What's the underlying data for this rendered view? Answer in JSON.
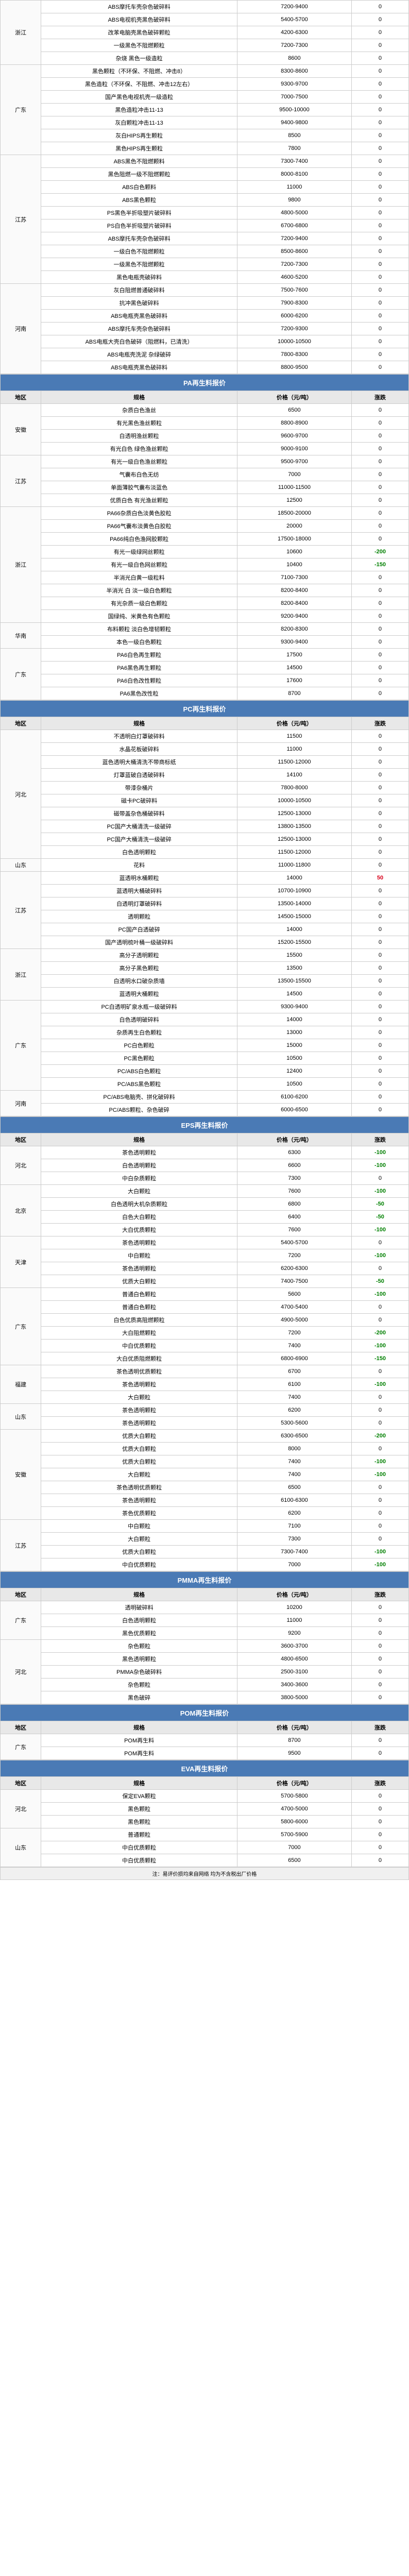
{
  "headers": {
    "region": "地区",
    "spec": "规格",
    "price": "价格（元/吨）",
    "change": "涨跌"
  },
  "colors": {
    "section_bg": "#4a7ab5",
    "section_fg": "#ffffff",
    "header_bg": "#e8e8e8",
    "border": "#cccccc",
    "up": "#d9001b",
    "down": "#008000",
    "neutral": "#000000"
  },
  "sections": [
    {
      "title": "",
      "show_header": false,
      "groups": [
        {
          "region": "浙江",
          "rows": [
            {
              "spec": "ABS摩托车壳杂色破碎料",
              "price": "7200-9400",
              "change": "0"
            },
            {
              "spec": "ABS电视机壳黑色破碎料",
              "price": "5400-5700",
              "change": "0"
            },
            {
              "spec": "改苯电脑壳黑色破碎颗粒",
              "price": "4200-6300",
              "change": "0"
            },
            {
              "spec": "一级黑色不阻燃颗粒",
              "price": "7200-7300",
              "change": "0"
            },
            {
              "spec": "杂烧 黑色一级造粒",
              "price": "8600",
              "change": "0"
            }
          ]
        },
        {
          "region": "广东",
          "rows": [
            {
              "spec": "黑色颗粒（不环保、不阻燃、冲击8）",
              "price": "8300-8600",
              "change": "0"
            },
            {
              "spec": "黑色造粒（不环保、不阻燃、冲击12左右）",
              "price": "9300-9700",
              "change": "0"
            },
            {
              "spec": "国产黑色电视机壳一级造粒",
              "price": "7000-7500",
              "change": "0"
            },
            {
              "spec": "黑色造粒冲击11-13",
              "price": "9500-10000",
              "change": "0"
            },
            {
              "spec": "灰白颗粒冲击11-13",
              "price": "9400-9800",
              "change": "0"
            },
            {
              "spec": "灰白HIPS再生颗粒",
              "price": "8500",
              "change": "0"
            },
            {
              "spec": "黑色HIPS再生颗粒",
              "price": "7800",
              "change": "0"
            }
          ]
        },
        {
          "region": "江苏",
          "rows": [
            {
              "spec": "ABS黑色不阻燃颗料",
              "price": "7300-7400",
              "change": "0"
            },
            {
              "spec": "黑色阻燃一级不阻燃颗粒",
              "price": "8000-8100",
              "change": "0"
            },
            {
              "spec": "ABS白色颗料",
              "price": "11000",
              "change": "0"
            },
            {
              "spec": "ABS黑色颗粒",
              "price": "9800",
              "change": "0"
            },
            {
              "spec": "PS黑色半折吸塑片破碎料",
              "price": "4800-5000",
              "change": "0"
            },
            {
              "spec": "PS白色半折吸塑片破碎料",
              "price": "6700-6800",
              "change": "0"
            },
            {
              "spec": "ABS摩托车壳杂色破碎料",
              "price": "7200-9400",
              "change": "0"
            },
            {
              "spec": "一级白色不阻燃颗粒",
              "price": "8500-8600",
              "change": "0"
            },
            {
              "spec": "一级黑色不阻燃颗粒",
              "price": "7200-7300",
              "change": "0"
            },
            {
              "spec": "黑色电瓶壳破碎料",
              "price": "4600-5200",
              "change": "0"
            }
          ]
        },
        {
          "region": "河南",
          "rows": [
            {
              "spec": "灰白阻燃普通破碎料",
              "price": "7500-7600",
              "change": "0"
            },
            {
              "spec": "抗冲黑色破碎料",
              "price": "7900-8300",
              "change": "0"
            },
            {
              "spec": "ABS电瓶壳黑色破碎料",
              "price": "6000-6200",
              "change": "0"
            },
            {
              "spec": "ABS摩托车壳杂色破碎料",
              "price": "7200-9300",
              "change": "0"
            },
            {
              "spec": "ABS电瓶大壳白色破碎（阻燃料，已清洗）",
              "price": "10000-10500",
              "change": "0"
            },
            {
              "spec": "ABS电瓶壳洗泥 杂绿破碎",
              "price": "7800-8300",
              "change": "0"
            },
            {
              "spec": "ABS电瓶壳黑色破碎料",
              "price": "8800-9500",
              "change": "0"
            }
          ]
        }
      ]
    },
    {
      "title": "PA再生料报价",
      "show_header": true,
      "groups": [
        {
          "region": "安徽",
          "rows": [
            {
              "spec": "杂质白色渔丝",
              "price": "6500",
              "change": "0"
            },
            {
              "spec": "有光黑色渔丝颗粒",
              "price": "8800-8900",
              "change": "0"
            },
            {
              "spec": "白透明渔丝颗粒",
              "price": "9600-9700",
              "change": "0"
            },
            {
              "spec": "有光白色 绿色渔丝颗粒",
              "price": "9000-9100",
              "change": "0"
            }
          ]
        },
        {
          "region": "江苏",
          "rows": [
            {
              "spec": "有光一级白色渔丝颗粒",
              "price": "9500-9700",
              "change": "0"
            },
            {
              "spec": "气囊布白色无纺",
              "price": "7000",
              "change": "0"
            },
            {
              "spec": "单面薄胶气囊布淡蓝色",
              "price": "11000-11500",
              "change": "0"
            },
            {
              "spec": "优质白色 有光渔丝颗粒",
              "price": "12500",
              "change": "0"
            }
          ]
        },
        {
          "region": "浙江",
          "rows": [
            {
              "spec": "PA66杂质白色淡黄色胶粒",
              "price": "18500-20000",
              "change": "0"
            },
            {
              "spec": "PA66气囊布淡黄色白胶粒",
              "price": "20000",
              "change": "0"
            },
            {
              "spec": "PA66纯白色渔网胶颗粒",
              "price": "17500-18000",
              "change": "0"
            },
            {
              "spec": "有光一级绿网丝颗粒",
              "price": "10600",
              "change": "-200"
            },
            {
              "spec": "有光一级白色网丝颗粒",
              "price": "10400",
              "change": "-150"
            },
            {
              "spec": "半消光白黄一级粒料",
              "price": "7100-7300",
              "change": "0"
            },
            {
              "spec": "半消光 白 淡一级白色颗粒",
              "price": "8200-8400",
              "change": "0"
            },
            {
              "spec": "有光杂质一级白色颗粒",
              "price": "8200-8400",
              "change": "0"
            },
            {
              "spec": "国绿纯、米黄色有色颗粒",
              "price": "9200-9400",
              "change": "0"
            }
          ]
        },
        {
          "region": "华南",
          "rows": [
            {
              "spec": "布料颗粒 淡白色增韧颗粒",
              "price": "8200-8300",
              "change": "0"
            },
            {
              "spec": "本色一级白色颗粒",
              "price": "9300-9400",
              "change": "0"
            }
          ]
        },
        {
          "region": "广东",
          "rows": [
            {
              "spec": "PA6白色再生颗粒",
              "price": "17500",
              "change": "0"
            },
            {
              "spec": "PA6黑色再生颗粒",
              "price": "14500",
              "change": "0"
            },
            {
              "spec": "PA6白色改性颗粒",
              "price": "17600",
              "change": "0"
            },
            {
              "spec": "PA6黑色改性粒",
              "price": "8700",
              "change": "0"
            }
          ]
        }
      ]
    },
    {
      "title": "PC再生料报价",
      "show_header": true,
      "groups": [
        {
          "region": "河北",
          "rows": [
            {
              "spec": "不透明白灯罩破碎料",
              "price": "11500",
              "change": "0"
            },
            {
              "spec": "水晶花板破碎料",
              "price": "11000",
              "change": "0"
            },
            {
              "spec": "蓝色透明大桶清洗不带商标纸",
              "price": "11500-12000",
              "change": "0"
            },
            {
              "spec": "灯罩蓝破白透破碎料",
              "price": "14100",
              "change": "0"
            },
            {
              "spec": "带漆杂桶片",
              "price": "7800-8000",
              "change": "0"
            },
            {
              "spec": "磁卡PC破碎料",
              "price": "10000-10500",
              "change": "0"
            },
            {
              "spec": "磁带盖杂色桶破碎料",
              "price": "12500-13000",
              "change": "0"
            },
            {
              "spec": "PC国产大桶清洗一级破碎",
              "price": "13800-13500",
              "change": "0"
            },
            {
              "spec": "PC国产大桶清洗一级破碎",
              "price": "12500-13000",
              "change": "0"
            },
            {
              "spec": "白色透明颗粒",
              "price": "11500-12000",
              "change": "0"
            }
          ]
        },
        {
          "region": "山东",
          "rows": [
            {
              "spec": "花料",
              "price": "11000-11800",
              "change": "0"
            }
          ]
        },
        {
          "region": "江苏",
          "rows": [
            {
              "spec": "蓝透明水桶颗粒",
              "price": "14000",
              "change": "50"
            },
            {
              "spec": "蓝透明大桶破碎料",
              "price": "10700-10900",
              "change": "0"
            },
            {
              "spec": "白透明灯罩破碎料",
              "price": "13500-14000",
              "change": "0"
            },
            {
              "spec": "透明颗粒",
              "price": "14500-15000",
              "change": "0"
            },
            {
              "spec": "PC国产白透破碎",
              "price": "14000",
              "change": "0"
            },
            {
              "spec": "国产透明梳叶桶一级破碎料",
              "price": "15200-15500",
              "change": "0"
            }
          ]
        },
        {
          "region": "浙江",
          "rows": [
            {
              "spec": "高分子透明颗粒",
              "price": "15500",
              "change": "0"
            },
            {
              "spec": "高分子黑色颗粒",
              "price": "13500",
              "change": "0"
            },
            {
              "spec": "白透明水口破杂质墙",
              "price": "13500-15500",
              "change": "0"
            },
            {
              "spec": "蓝透明大桶颗粒",
              "price": "14500",
              "change": "0"
            }
          ]
        },
        {
          "region": "广东",
          "rows": [
            {
              "spec": "PC白透明矿泉水瓶一级破碎料",
              "price": "9300-9400",
              "change": "0"
            },
            {
              "spec": "白色透明破碎料",
              "price": "14000",
              "change": "0"
            },
            {
              "spec": "杂质再生白色颗粒",
              "price": "13000",
              "change": "0"
            },
            {
              "spec": "PC白色颗粒",
              "price": "15000",
              "change": "0"
            },
            {
              "spec": "PC黑色颗粒",
              "price": "10500",
              "change": "0"
            },
            {
              "spec": "PC/ABS白色颗粒",
              "price": "12400",
              "change": "0"
            },
            {
              "spec": "PC/ABS黑色颗粒",
              "price": "10500",
              "change": "0"
            }
          ]
        },
        {
          "region": "河南",
          "rows": [
            {
              "spec": "PC/ABS电脑壳、拼化破碎料",
              "price": "6100-6200",
              "change": "0"
            },
            {
              "spec": "PC/ABS颗粒、杂色破碎",
              "price": "6000-6500",
              "change": "0"
            }
          ]
        }
      ]
    },
    {
      "title": "EPS再生料报价",
      "show_header": true,
      "groups": [
        {
          "region": "河北",
          "rows": [
            {
              "spec": "茶色透明颗粒",
              "price": "6300",
              "change": "-100"
            },
            {
              "spec": "白色透明颗粒",
              "price": "6600",
              "change": "-100"
            },
            {
              "spec": "中白杂质颗粒",
              "price": "7300",
              "change": "0"
            }
          ]
        },
        {
          "region": "北京",
          "rows": [
            {
              "spec": "大白颗粒",
              "price": "7600",
              "change": "-100"
            },
            {
              "spec": "白色透明大机杂质颗粒",
              "price": "6800",
              "change": "-50"
            },
            {
              "spec": "白色大白颗粒",
              "price": "6400",
              "change": "-50"
            },
            {
              "spec": "大白优质颗粒",
              "price": "7600",
              "change": "-100"
            }
          ]
        },
        {
          "region": "天津",
          "rows": [
            {
              "spec": "茶色透明颗粒",
              "price": "5400-5700",
              "change": "0"
            },
            {
              "spec": "中白颗粒",
              "price": "7200",
              "change": "-100"
            },
            {
              "spec": "茶色透明颗粒",
              "price": "6200-6300",
              "change": "0"
            },
            {
              "spec": "优质大白颗粒",
              "price": "7400-7500",
              "change": "-50"
            }
          ]
        },
        {
          "region": "广东",
          "rows": [
            {
              "spec": "普通白色颗粒",
              "price": "5600",
              "change": "-100"
            },
            {
              "spec": "普通白色颗粒",
              "price": "4700-5400",
              "change": "0"
            },
            {
              "spec": "白色优质高阻燃颗粒",
              "price": "4900-5000",
              "change": "0"
            },
            {
              "spec": "大白阻燃颗粒",
              "price": "7200",
              "change": "-200"
            },
            {
              "spec": "中白优质颗粒",
              "price": "7400",
              "change": "-100"
            },
            {
              "spec": "大白优质阻燃颗粒",
              "price": "6800-6900",
              "change": "-150"
            }
          ]
        },
        {
          "region": "福建",
          "rows": [
            {
              "spec": "茶色透明优质颗粒",
              "price": "6700",
              "change": "0"
            },
            {
              "spec": "茶色透明颗粒",
              "price": "6100",
              "change": "-100"
            },
            {
              "spec": "大白颗粒",
              "price": "7400",
              "change": "0"
            }
          ]
        },
        {
          "region": "山东",
          "rows": [
            {
              "spec": "茶色透明颗粒",
              "price": "6200",
              "change": "0"
            },
            {
              "spec": "茶色透明颗粒",
              "price": "5300-5600",
              "change": "0"
            }
          ]
        },
        {
          "region": "安徽",
          "rows": [
            {
              "spec": "优质大白颗粒",
              "price": "6300-6500",
              "change": "-200"
            },
            {
              "spec": "优质大白颗粒",
              "price": "8000",
              "change": "0"
            },
            {
              "spec": "优质大白颗粒",
              "price": "7400",
              "change": "-100"
            },
            {
              "spec": "大白颗粒",
              "price": "7400",
              "change": "-100"
            },
            {
              "spec": "茶色透明优质颗粒",
              "price": "6500",
              "change": "0"
            },
            {
              "spec": "茶色透明颗粒",
              "price": "6100-6300",
              "change": "0"
            },
            {
              "spec": "茶色优质颗粒",
              "price": "6200",
              "change": "0"
            }
          ]
        },
        {
          "region": "江苏",
          "rows": [
            {
              "spec": "中白颗粒",
              "price": "7100",
              "change": "0"
            },
            {
              "spec": "大白颗粒",
              "price": "7300",
              "change": "0"
            },
            {
              "spec": "优质大白颗粒",
              "price": "7300-7400",
              "change": "-100"
            },
            {
              "spec": "中白优质颗粒",
              "price": "7000",
              "change": "-100"
            }
          ]
        }
      ]
    },
    {
      "title": "PMMA再生料报价",
      "show_header": true,
      "groups": [
        {
          "region": "广东",
          "rows": [
            {
              "spec": "透明破碎料",
              "price": "10200",
              "change": "0"
            },
            {
              "spec": "白色透明颗粒",
              "price": "11000",
              "change": "0"
            },
            {
              "spec": "黑色优质颗粒",
              "price": "9200",
              "change": "0"
            }
          ]
        },
        {
          "region": "河北",
          "rows": [
            {
              "spec": "杂色颗粒",
              "price": "3600-3700",
              "change": "0"
            },
            {
              "spec": "黑色透明颗粒",
              "price": "4800-6500",
              "change": "0"
            },
            {
              "spec": "PMMA杂色破碎料",
              "price": "2500-3100",
              "change": "0"
            },
            {
              "spec": "杂色颗粒",
              "price": "3400-3600",
              "change": "0"
            },
            {
              "spec": "黑色破碎",
              "price": "3800-5000",
              "change": "0"
            }
          ]
        }
      ]
    },
    {
      "title": "POM再生料报价",
      "show_header": true,
      "groups": [
        {
          "region": "广东",
          "rows": [
            {
              "spec": "POM再生料",
              "price": "8700",
              "change": "0"
            },
            {
              "spec": "POM再生料",
              "price": "9500",
              "change": "0"
            }
          ]
        }
      ]
    },
    {
      "title": "EVA再生料报价",
      "show_header": true,
      "groups": [
        {
          "region": "河北",
          "rows": [
            {
              "spec": "保定EVA颗粒",
              "price": "5700-5800",
              "change": "0"
            },
            {
              "spec": "黑色颗粒",
              "price": "4700-5000",
              "change": "0"
            },
            {
              "spec": "黑色颗粒",
              "price": "5800-6000",
              "change": "0"
            }
          ]
        },
        {
          "region": "山东",
          "rows": [
            {
              "spec": "普通颗粒",
              "price": "5700-5900",
              "change": "0"
            },
            {
              "spec": "中白优质颗粒",
              "price": "7000",
              "change": "0"
            },
            {
              "spec": "中白优质颗粒",
              "price": "6500",
              "change": "0"
            }
          ]
        }
      ]
    }
  ],
  "footer": "注：易评价损均来自网络  均为不含税出厂价格"
}
